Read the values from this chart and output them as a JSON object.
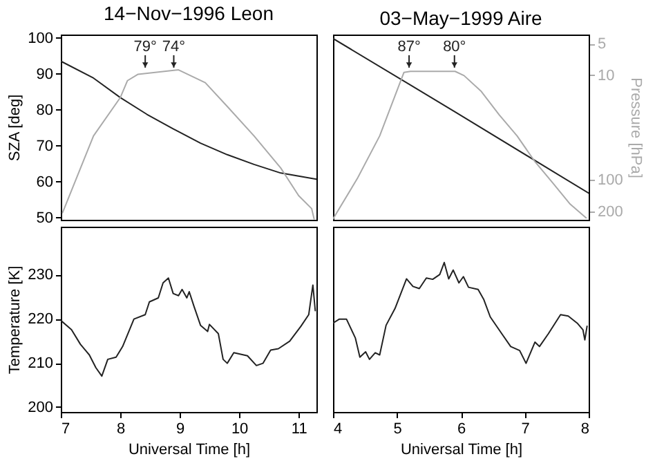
{
  "chart_data": [
    {
      "type": "line",
      "title": "14−Nov−1996 Leon",
      "ylabel": "SZA [deg]",
      "xlim": [
        7,
        11.3
      ],
      "ylim": [
        49.4,
        100.9
      ],
      "yticks": [
        50,
        60,
        70,
        80,
        90,
        100
      ],
      "y2lim": [
        240,
        4.1
      ],
      "log": "y2",
      "tick_labels": [
        "y"
      ],
      "series": [
        {
          "color": "#222222",
          "x": [
            7.0,
            7.55,
            8.0,
            8.45,
            8.9,
            9.35,
            9.8,
            10.25,
            10.7,
            11.3
          ],
          "values": [
            93.5,
            88.8,
            83.4,
            78.7,
            74.6,
            70.7,
            67.5,
            64.8,
            62.4,
            60.7
          ]
        },
        {
          "color": "#aaaaaa",
          "axis": "y2",
          "x": [
            7.03,
            7.55,
            8.0,
            8.12,
            8.3,
            8.98,
            9.43,
            9.8,
            10.25,
            10.7,
            11.0,
            11.22,
            11.26
          ],
          "values": [
            205,
            38,
            16.4,
            11.3,
            9.8,
            8.9,
            11.8,
            19.9,
            38,
            77,
            141,
            188,
            235
          ]
        }
      ],
      "annotations": [
        {
          "text": "79°",
          "x": 8.42,
          "y": 91.7
        },
        {
          "text": "74°",
          "x": 8.9,
          "y": 91.7
        }
      ]
    },
    {
      "type": "line",
      "title": "03−May−1999 Aire",
      "y2label": "Pressure [hPa]",
      "xlim": [
        4,
        8
      ],
      "ylim": [
        49.4,
        100.9
      ],
      "y2lim": [
        240,
        4.1
      ],
      "y2ticks": [
        5,
        10,
        100,
        200
      ],
      "log": "y2",
      "tick_labels": [
        "y2"
      ],
      "series": [
        {
          "color": "#222222",
          "x": [
            4.0,
            5.2,
            5.9,
            8.0
          ],
          "values": [
            99.8,
            87,
            79.5,
            56.8
          ]
        },
        {
          "color": "#aaaaaa",
          "axis": "y2",
          "x": [
            4.0,
            4.38,
            4.73,
            5.11,
            5.21,
            5.91,
            6.05,
            6.32,
            6.6,
            6.88,
            7.16,
            7.44,
            7.71,
            7.96
          ],
          "values": [
            235,
            97,
            38,
            9.4,
            9.2,
            9.2,
            10.1,
            14.3,
            23.9,
            38,
            67,
            107,
            170,
            230
          ]
        }
      ],
      "annotations": [
        {
          "text": "87°",
          "x": 5.19,
          "y": 91.7
        },
        {
          "text": "80°",
          "x": 5.9,
          "y": 91.7
        }
      ]
    },
    {
      "type": "line",
      "xlabel": "Universal Time [h]",
      "ylabel": "Temperature [K]",
      "xlim": [
        7,
        11.3
      ],
      "xticks": [
        7,
        8,
        9,
        10,
        11
      ],
      "ylim": [
        198.9,
        240.8
      ],
      "yticks": [
        200,
        210,
        220,
        230
      ],
      "series": [
        {
          "color": "#222222",
          "x": [
            7.0,
            7.18,
            7.33,
            7.48,
            7.59,
            7.69,
            7.79,
            7.93,
            8.04,
            8.23,
            8.42,
            8.49,
            8.64,
            8.72,
            8.81,
            8.89,
            8.98,
            9.04,
            9.12,
            9.16,
            9.24,
            9.35,
            9.47,
            9.5,
            9.65,
            9.73,
            9.8,
            9.91,
            10.14,
            10.29,
            10.4,
            10.53,
            10.66,
            10.85,
            11.04,
            11.17,
            11.24,
            11.28
          ],
          "values": [
            219.6,
            217.5,
            214.2,
            211.8,
            208.9,
            207.0,
            210.8,
            211.3,
            213.7,
            219.9,
            220.9,
            223.8,
            224.7,
            228.1,
            229.2,
            225.7,
            225.2,
            226.6,
            224.7,
            226.1,
            222.8,
            218.5,
            217.1,
            218.7,
            216.6,
            210.8,
            209.9,
            212.3,
            211.6,
            209.4,
            209.9,
            212.9,
            213.2,
            214.9,
            218.3,
            220.9,
            227.6,
            221.8
          ]
        }
      ]
    },
    {
      "type": "line",
      "xlabel": "Universal Time [h]",
      "xlim": [
        4,
        8
      ],
      "xticks": [
        4,
        5,
        6,
        7,
        8
      ],
      "ylim": [
        198.9,
        240.8
      ],
      "tick_labels": "x",
      "series": [
        {
          "color": "#222222",
          "x": [
            4.0,
            4.1,
            4.21,
            4.35,
            4.42,
            4.51,
            4.57,
            4.66,
            4.73,
            4.83,
            4.97,
            5.15,
            5.25,
            5.35,
            5.46,
            5.56,
            5.67,
            5.74,
            5.81,
            5.88,
            5.97,
            6.04,
            6.12,
            6.27,
            6.36,
            6.46,
            6.64,
            6.78,
            6.92,
            7.02,
            7.16,
            7.23,
            7.37,
            7.56,
            7.68,
            7.82,
            7.91,
            7.94,
            7.975
          ],
          "values": [
            219.0,
            219.9,
            219.9,
            215.6,
            211.3,
            212.5,
            210.8,
            212.3,
            211.8,
            218.5,
            222.3,
            229.0,
            227.3,
            226.8,
            229.2,
            228.9,
            230.0,
            232.7,
            229.0,
            231.0,
            228.1,
            229.5,
            227.1,
            226.6,
            224.3,
            220.4,
            216.6,
            213.7,
            212.8,
            209.9,
            214.7,
            213.7,
            216.6,
            220.9,
            220.6,
            219.0,
            217.5,
            215.2,
            218.3
          ]
        }
      ]
    }
  ]
}
